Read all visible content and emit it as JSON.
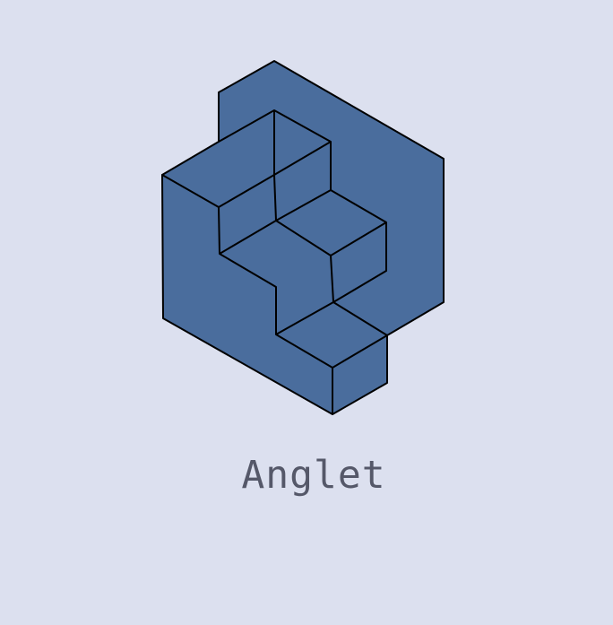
{
  "brand": {
    "name": "Anglet",
    "logo_icon": "isometric-stairs-icon",
    "colors": {
      "background": "#dce0ef",
      "logo_fill": "#4a6d9d",
      "logo_outline": "#000000",
      "wordmark": "#555869"
    }
  }
}
